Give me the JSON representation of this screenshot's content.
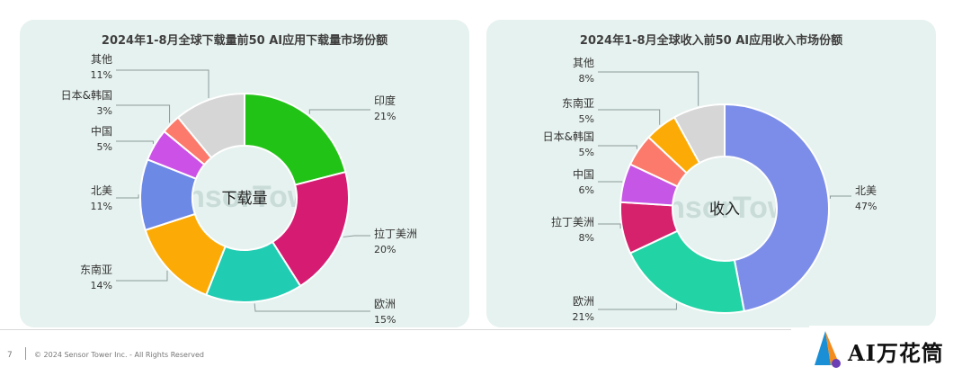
{
  "chart_data": [
    {
      "type": "donut",
      "title": "2024年1-8月全球下载量前50 AI应用下载量市场份额",
      "center_label": "下载量",
      "unit": "%",
      "series": [
        {
          "label": "印度",
          "value": 21,
          "value_text": "21%",
          "color": "#22c317"
        },
        {
          "label": "拉丁美洲",
          "value": 20,
          "value_text": "20%",
          "color": "#d61c72"
        },
        {
          "label": "欧洲",
          "value": 15,
          "value_text": "15%",
          "color": "#20ccb2"
        },
        {
          "label": "东南亚",
          "value": 14,
          "value_text": "14%",
          "color": "#fcab06"
        },
        {
          "label": "北美",
          "value": 11,
          "value_text": "11%",
          "color": "#6d89e6"
        },
        {
          "label": "中国",
          "value": 5,
          "value_text": "5%",
          "color": "#cc51e6"
        },
        {
          "label": "日本&韩国",
          "value": 3,
          "value_text": "3%",
          "color": "#fb7a6b"
        },
        {
          "label": "其他",
          "value": 11,
          "value_text": "11%",
          "color": "#d6d6d6"
        }
      ]
    },
    {
      "type": "donut",
      "title": "2024年1-8月全球收入前50 AI应用收入市场份额",
      "center_label": "收入",
      "unit": "%",
      "series": [
        {
          "label": "北美",
          "value": 47,
          "value_text": "47%",
          "color": "#7b8de8"
        },
        {
          "label": "欧洲",
          "value": 21,
          "value_text": "21%",
          "color": "#22d3a6"
        },
        {
          "label": "拉丁美洲",
          "value": 8,
          "value_text": "8%",
          "color": "#d6216c"
        },
        {
          "label": "中国",
          "value": 6,
          "value_text": "6%",
          "color": "#c656e6"
        },
        {
          "label": "日本&韩国",
          "value": 5,
          "value_text": "5%",
          "color": "#fb7a6b"
        },
        {
          "label": "东南亚",
          "value": 5,
          "value_text": "5%",
          "color": "#fcab06"
        },
        {
          "label": "其他",
          "value": 8,
          "value_text": "8%",
          "color": "#d6d6d6"
        }
      ]
    }
  ],
  "watermark": "SensorTower",
  "footer": {
    "page_number": "7",
    "copyright": "© 2024 Sensor Tower Inc. - All Rights Reserved"
  },
  "logo": {
    "text": "AI万花筒"
  }
}
